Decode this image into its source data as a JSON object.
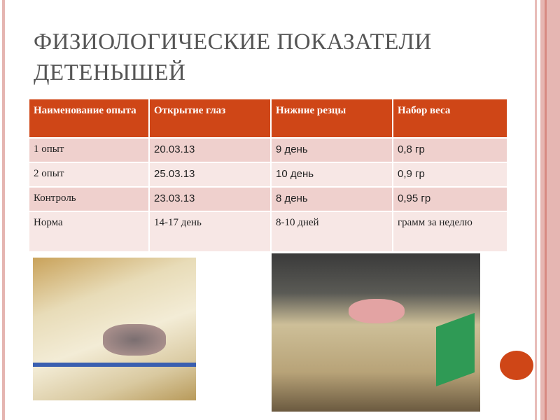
{
  "title": "ФИЗИОЛОГИЧЕСКИЕ ПОКАЗАТЕЛИ ДЕТЕНЫШЕЙ",
  "table": {
    "headers": [
      "Наименование опыта",
      "Открытие глаз",
      "Нижние резцы",
      "Набор веса"
    ],
    "rows": [
      [
        "1 опыт",
        "20.03.13",
        "9 день",
        "0,8 гр"
      ],
      [
        "2 опыт",
        "25.03.13",
        "10 день",
        "0,9 гр"
      ],
      [
        "Контроль",
        "23.03.13",
        "8 день",
        "0,95 гр"
      ],
      [
        "Норма",
        "14-17 день",
        "8-10 дней",
        "грамм за неделю"
      ]
    ]
  },
  "colors": {
    "accent": "#cf4617",
    "row_odd": "#efd0cd",
    "row_even": "#f7e7e5",
    "border": "#e6b6b2"
  }
}
